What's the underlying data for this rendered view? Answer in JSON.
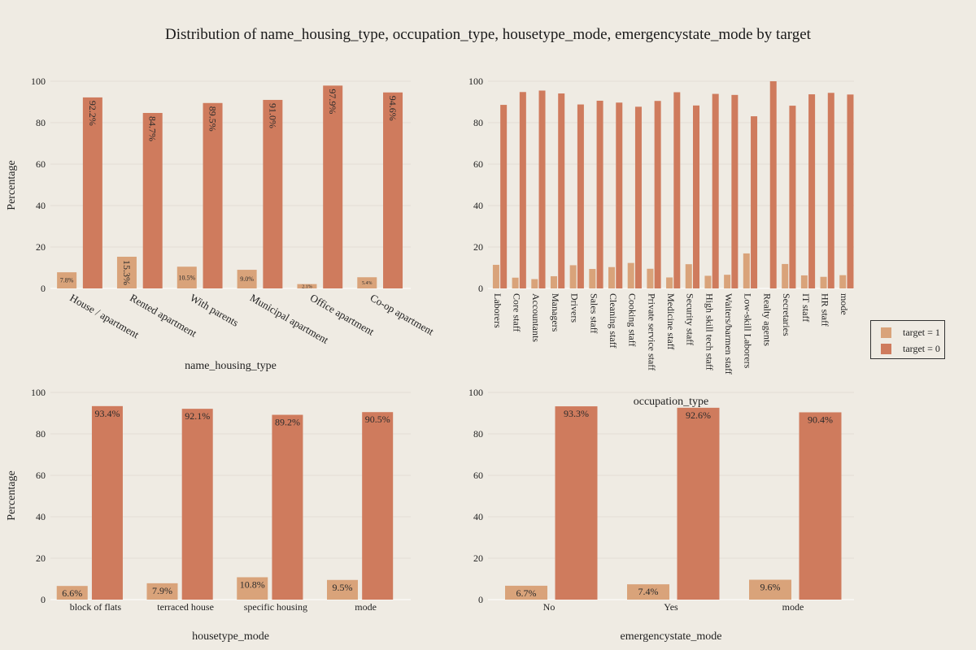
{
  "title": "Distribution of name_housing_type, occupation_type, housetype_mode, emergencystate_mode by target",
  "colors": {
    "target1": "#d9a37a",
    "target0": "#cf7b5d",
    "grid": "#e3ded5",
    "background": "#efebe3"
  },
  "legend": {
    "items": [
      {
        "label": "target = 1",
        "color": "#d9a37a"
      },
      {
        "label": "target = 0",
        "color": "#cf7b5d"
      }
    ]
  },
  "chart_data": [
    {
      "type": "bar",
      "xlabel": "name_housing_type",
      "ylabel": "Percentage",
      "ylim": [
        0,
        100
      ],
      "yticks": [
        0,
        20,
        40,
        60,
        80,
        100
      ],
      "categories": [
        "House / apartment",
        "Rented apartment",
        "With parents",
        "Municipal apartment",
        "Office apartment",
        "Co-op apartment"
      ],
      "series": [
        {
          "name": "target = 1",
          "values": [
            7.8,
            15.3,
            10.5,
            9.0,
            2.1,
            5.4
          ],
          "labels": [
            "7.8%",
            "15.3%",
            "10.5%",
            "9.0%",
            "2.1%",
            "5.4%"
          ]
        },
        {
          "name": "target = 0",
          "values": [
            92.2,
            84.7,
            89.5,
            91.0,
            97.9,
            94.6
          ],
          "labels": [
            "92.2%",
            "84.7%",
            "89.5%",
            "91.0%",
            "97.9%",
            "94.6%"
          ]
        }
      ]
    },
    {
      "type": "bar",
      "xlabel": "occupation_type",
      "ylabel": "",
      "ylim": [
        0,
        100
      ],
      "yticks": [
        0,
        20,
        40,
        60,
        80,
        100
      ],
      "categories": [
        "Laborers",
        "Core staff",
        "Accountants",
        "Managers",
        "Drivers",
        "Sales staff",
        "Cleaning staff",
        "Cooking staff",
        "Private service staff",
        "Medicine staff",
        "Security staff",
        "High skill tech staff",
        "Waiters/barmen staff",
        "Low-skill Laborers",
        "Realty agents",
        "Secretaries",
        "IT staff",
        "HR staff",
        "mode"
      ],
      "series": [
        {
          "name": "target = 1",
          "values": [
            11.4,
            5.2,
            4.5,
            5.9,
            11.2,
            9.4,
            10.3,
            12.3,
            9.5,
            5.3,
            11.7,
            6.1,
            6.6,
            16.9,
            0,
            11.8,
            6.3,
            5.6,
            6.4
          ]
        },
        {
          "name": "target = 0",
          "values": [
            88.6,
            94.8,
            95.5,
            94.1,
            88.8,
            90.6,
            89.7,
            87.7,
            90.5,
            94.7,
            88.3,
            93.9,
            93.4,
            83.1,
            100,
            88.2,
            93.7,
            94.4,
            93.6
          ]
        }
      ]
    },
    {
      "type": "bar",
      "xlabel": "housetype_mode",
      "ylabel": "Percentage",
      "ylim": [
        0,
        100
      ],
      "yticks": [
        0,
        20,
        40,
        60,
        80,
        100
      ],
      "categories": [
        "block of flats",
        "terraced house",
        "specific housing",
        "mode"
      ],
      "series": [
        {
          "name": "target = 1",
          "values": [
            6.6,
            7.9,
            10.8,
            9.5
          ],
          "labels": [
            "6.6%",
            "7.9%",
            "10.8%",
            "9.5%"
          ]
        },
        {
          "name": "target = 0",
          "values": [
            93.4,
            92.1,
            89.2,
            90.5
          ],
          "labels": [
            "93.4%",
            "92.1%",
            "89.2%",
            "90.5%"
          ]
        }
      ]
    },
    {
      "type": "bar",
      "xlabel": "emergencystate_mode",
      "ylabel": "",
      "ylim": [
        0,
        100
      ],
      "yticks": [
        0,
        20,
        40,
        60,
        80,
        100
      ],
      "categories": [
        "No",
        "Yes",
        "mode"
      ],
      "series": [
        {
          "name": "target = 1",
          "values": [
            6.7,
            7.4,
            9.6
          ],
          "labels": [
            "6.7%",
            "7.4%",
            "9.6%"
          ]
        },
        {
          "name": "target = 0",
          "values": [
            93.3,
            92.6,
            90.4
          ],
          "labels": [
            "93.3%",
            "92.6%",
            "90.4%"
          ]
        }
      ]
    }
  ]
}
